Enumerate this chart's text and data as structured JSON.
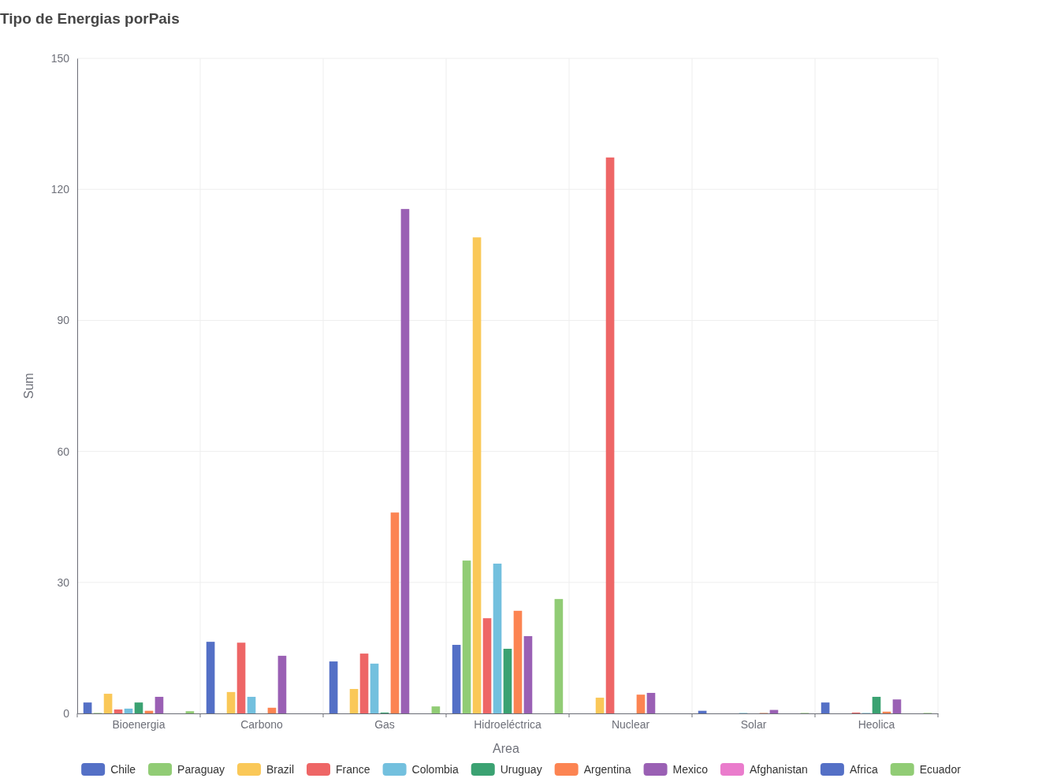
{
  "chart_data": {
    "type": "bar",
    "title": "Tipo de Energias porPais",
    "xlabel": "Area",
    "ylabel": "Sum",
    "categories": [
      "Bioenergia",
      "Carbono",
      "Gas",
      "Hidroeléctrica",
      "Nuclear",
      "Solar",
      "Heolica"
    ],
    "ylim": [
      0,
      150
    ],
    "yticks": [
      0,
      30,
      60,
      90,
      120,
      150
    ],
    "grid": true,
    "legend": "bottom",
    "series": [
      {
        "name": "Chile",
        "color": "#5470c6",
        "values": [
          2.5,
          16.4,
          11.9,
          15.7,
          null,
          0.6,
          2.5
        ]
      },
      {
        "name": "Paraguay",
        "color": "#91cc75",
        "values": [
          0.1,
          null,
          null,
          35,
          null,
          null,
          null
        ]
      },
      {
        "name": "Brazil",
        "color": "#fac858",
        "values": [
          4.5,
          4.9,
          5.6,
          109,
          3.6,
          null,
          null
        ]
      },
      {
        "name": "France",
        "color": "#ee6666",
        "values": [
          0.9,
          16.2,
          13.7,
          21.8,
          127.3,
          null,
          0.2
        ]
      },
      {
        "name": "Colombia",
        "color": "#73c0de",
        "values": [
          1.1,
          3.8,
          11.4,
          34.3,
          null,
          0.1,
          0.1
        ]
      },
      {
        "name": "Uruguay",
        "color": "#3ba272",
        "values": [
          2.5,
          null,
          0.2,
          14.8,
          null,
          null,
          3.8
        ]
      },
      {
        "name": "Argentina",
        "color": "#fc8452",
        "values": [
          0.6,
          1.3,
          46,
          23.5,
          4.3,
          0.1,
          0.4
        ]
      },
      {
        "name": "Mexico",
        "color": "#9a60b4",
        "values": [
          3.8,
          13.2,
          115.5,
          17.7,
          4.7,
          0.8,
          3.2
        ]
      },
      {
        "name": "Afghanistan",
        "color": "#ea7ccc",
        "values": [
          null,
          null,
          null,
          null,
          null,
          null,
          null
        ]
      },
      {
        "name": "Africa",
        "color": "#5470c6",
        "values": [
          null,
          null,
          null,
          null,
          null,
          null,
          null
        ]
      },
      {
        "name": "Ecuador",
        "color": "#91cc75",
        "values": [
          0.5,
          null,
          1.6,
          26.2,
          null,
          0.1,
          0.1
        ]
      }
    ]
  }
}
